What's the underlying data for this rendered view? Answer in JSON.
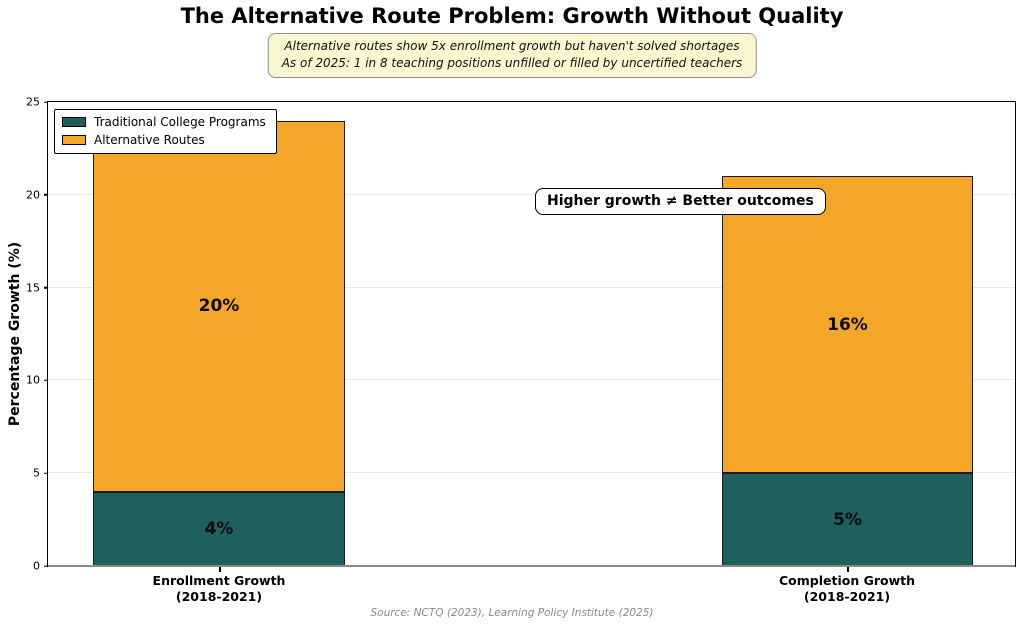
{
  "title": "The Alternative Route Problem: Growth Without Quality",
  "subtitle": {
    "line1": "Alternative routes show 5x enrollment growth but haven't solved shortages",
    "line2": "As of 2025: 1 in 8 teaching positions unfilled or filled by uncertified teachers"
  },
  "annotation": "Higher growth ≠ Better outcomes",
  "source": "Source: NCTQ (2023), Learning Policy Institute (2025)",
  "colors": {
    "traditional": "#1E605E",
    "alternative": "#F3A628",
    "subtitle_bg": "#FAF7D0",
    "grid": "#E9E9E9",
    "zero_line": "#8A8A8A"
  },
  "chart_data": {
    "type": "bar",
    "stacked": true,
    "categories": [
      {
        "line1": "Enrollment Growth",
        "line2": "(2018-2021)"
      },
      {
        "line1": "Completion Growth",
        "line2": "(2018-2021)"
      }
    ],
    "series": [
      {
        "name": "Traditional College Programs",
        "color": "#1E605E",
        "values": [
          4,
          5
        ],
        "labels": [
          "4%",
          "5%"
        ]
      },
      {
        "name": "Alternative Routes",
        "color": "#F3A628",
        "values": [
          20,
          16
        ],
        "labels": [
          "20%",
          "16%"
        ]
      }
    ],
    "ylabel": "Percentage Growth (%)",
    "ylim": [
      0,
      25
    ],
    "yticks": [
      0,
      5,
      10,
      15,
      20,
      25
    ],
    "grid": true,
    "legend_position": "upper left"
  }
}
